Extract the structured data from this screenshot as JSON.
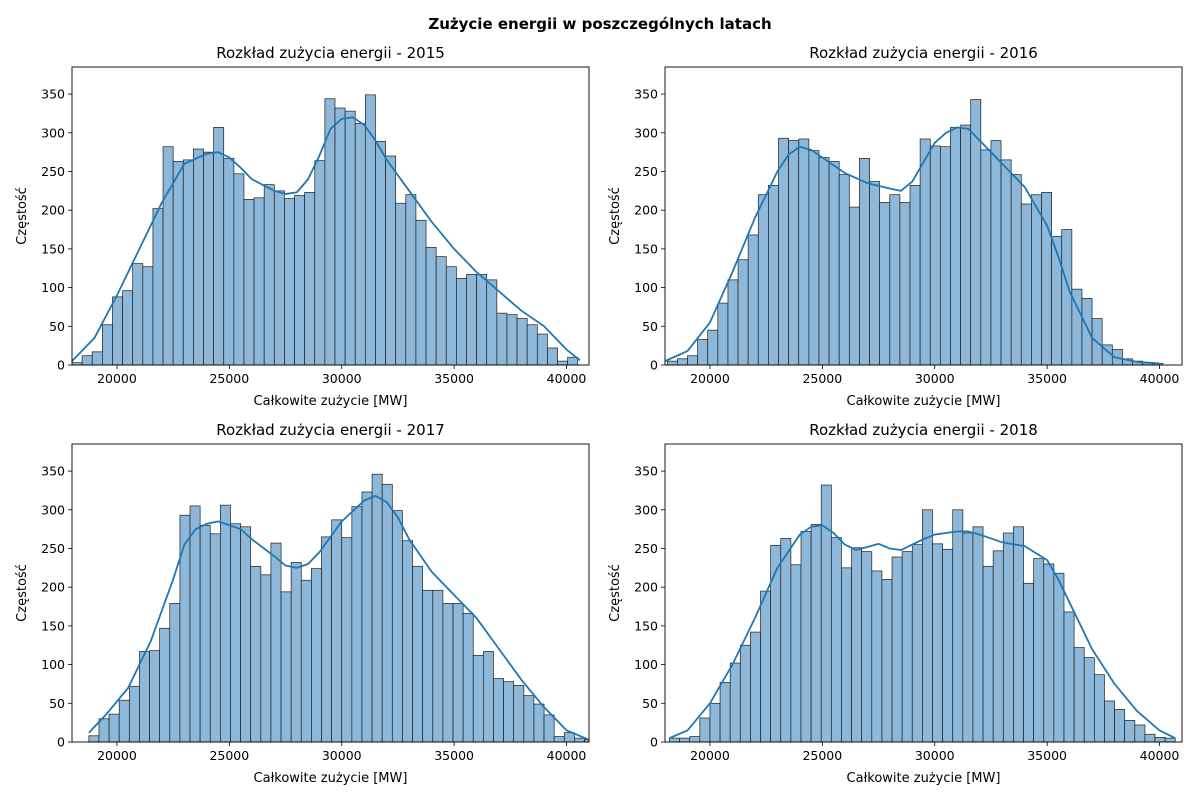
{
  "figure": {
    "suptitle": "Zużycie energii w poszczególnych latach"
  },
  "colors": {
    "bar_fill": "#8db8d9",
    "bar_edge": "#1f1f1f",
    "kde_line": "#1f77b4",
    "axes": "#000000"
  },
  "chart_data": [
    {
      "type": "bar",
      "title": "Rozkład zużycia energii - 2015",
      "xlabel": "Całkowite zużycie [MW]",
      "ylabel": "Częstość",
      "xlim": [
        18000,
        41000
      ],
      "ylim": [
        0,
        385
      ],
      "xticks": [
        "20000",
        "25000",
        "30000",
        "35000",
        "40000"
      ],
      "yticks": [
        "0",
        "50",
        "100",
        "150",
        "200",
        "250",
        "300",
        "350"
      ],
      "bin_start": 18000,
      "bin_width": 450,
      "values": [
        3,
        12,
        17,
        52,
        88,
        96,
        131,
        127,
        202,
        282,
        263,
        265,
        279,
        275,
        307,
        267,
        247,
        214,
        216,
        233,
        225,
        215,
        219,
        223,
        264,
        344,
        332,
        328,
        312,
        349,
        289,
        270,
        209,
        220,
        187,
        152,
        140,
        127,
        112,
        117,
        117,
        110,
        67,
        65,
        60,
        52,
        40,
        22,
        5,
        10
      ],
      "kde_x": [
        18000,
        19000,
        20000,
        21000,
        22000,
        23000,
        24000,
        24500,
        25000,
        25500,
        26000,
        27000,
        27500,
        28000,
        28500,
        29000,
        29500,
        30000,
        30500,
        31000,
        31500,
        32000,
        33000,
        34000,
        35000,
        36000,
        37000,
        38000,
        39000,
        40000,
        40600
      ],
      "kde_y": [
        5,
        35,
        90,
        150,
        210,
        260,
        273,
        275,
        268,
        255,
        240,
        225,
        221,
        223,
        240,
        270,
        305,
        318,
        320,
        310,
        290,
        265,
        225,
        185,
        150,
        120,
        95,
        70,
        50,
        20,
        6
      ],
      "grid": false,
      "legend": "none"
    },
    {
      "type": "bar",
      "title": "Rozkład zużycia energii - 2016",
      "xlabel": "Całkowite zużycie [MW]",
      "ylabel": "Częstość",
      "xlim": [
        18000,
        41000
      ],
      "ylim": [
        0,
        385
      ],
      "xticks": [
        "20000",
        "25000",
        "30000",
        "35000",
        "40000"
      ],
      "yticks": [
        "0",
        "50",
        "100",
        "150",
        "200",
        "250",
        "300",
        "350"
      ],
      "bin_start": 18100,
      "bin_width": 450,
      "values": [
        5,
        8,
        12,
        33,
        45,
        80,
        110,
        136,
        168,
        220,
        232,
        293,
        290,
        292,
        277,
        268,
        263,
        246,
        204,
        267,
        237,
        210,
        220,
        210,
        232,
        292,
        283,
        282,
        307,
        310,
        343,
        278,
        290,
        265,
        246,
        208,
        220,
        223,
        166,
        175,
        98,
        86,
        60,
        26,
        20,
        8,
        5,
        3,
        2
      ],
      "kde_x": [
        18000,
        19000,
        20000,
        21000,
        22000,
        23000,
        23500,
        24000,
        24500,
        25000,
        26000,
        27000,
        28000,
        28500,
        29000,
        29500,
        30000,
        30500,
        31000,
        31500,
        32000,
        33000,
        34000,
        35000,
        35500,
        36000,
        37000,
        38000,
        39000,
        40000
      ],
      "kde_y": [
        5,
        18,
        55,
        120,
        190,
        250,
        272,
        282,
        278,
        268,
        248,
        235,
        228,
        225,
        237,
        262,
        287,
        300,
        307,
        305,
        290,
        260,
        230,
        180,
        140,
        95,
        35,
        10,
        4,
        2
      ],
      "grid": false,
      "legend": "none"
    },
    {
      "type": "bar",
      "title": "Rozkład zużycia energii - 2017",
      "xlabel": "Całkowite zużycie [MW]",
      "ylabel": "Częstość",
      "xlim": [
        18000,
        41000
      ],
      "ylim": [
        0,
        385
      ],
      "xticks": [
        "20000",
        "25000",
        "30000",
        "35000",
        "40000"
      ],
      "yticks": [
        "0",
        "50",
        "100",
        "150",
        "200",
        "250",
        "300",
        "350"
      ],
      "bin_start": 18750,
      "bin_width": 450,
      "values": [
        8,
        30,
        36,
        54,
        72,
        117,
        118,
        147,
        179,
        293,
        305,
        280,
        269,
        306,
        282,
        278,
        227,
        216,
        257,
        194,
        232,
        209,
        224,
        265,
        287,
        264,
        304,
        323,
        346,
        333,
        299,
        260,
        227,
        196,
        196,
        179,
        179,
        166,
        112,
        117,
        82,
        78,
        73,
        60,
        49,
        35,
        7,
        12,
        5,
        3
      ],
      "kde_x": [
        18750,
        19500,
        20500,
        21500,
        22500,
        23000,
        23500,
        24000,
        24500,
        25000,
        25500,
        26000,
        27000,
        27500,
        28000,
        28500,
        29000,
        30000,
        31000,
        31500,
        32000,
        32500,
        33000,
        34000,
        35000,
        36000,
        37000,
        38000,
        39000,
        40000,
        41000
      ],
      "kde_y": [
        12,
        35,
        70,
        130,
        210,
        255,
        275,
        282,
        285,
        280,
        275,
        262,
        240,
        228,
        225,
        230,
        245,
        285,
        312,
        318,
        310,
        290,
        262,
        220,
        190,
        160,
        120,
        80,
        45,
        15,
        3
      ],
      "grid": false,
      "legend": "none"
    },
    {
      "type": "bar",
      "title": "Rozkład zużycia energii - 2018",
      "xlabel": "Całkowite zużycie [MW]",
      "ylabel": "Częstość",
      "xlim": [
        18000,
        41000
      ],
      "ylim": [
        0,
        385
      ],
      "xticks": [
        "20000",
        "25000",
        "30000",
        "35000",
        "40000"
      ],
      "yticks": [
        "0",
        "50",
        "100",
        "150",
        "200",
        "250",
        "300",
        "350"
      ],
      "bin_start": 18200,
      "bin_width": 450,
      "values": [
        5,
        5,
        7,
        31,
        50,
        77,
        102,
        125,
        142,
        195,
        254,
        263,
        229,
        272,
        281,
        332,
        264,
        225,
        251,
        246,
        221,
        210,
        239,
        246,
        255,
        300,
        256,
        249,
        300,
        270,
        278,
        227,
        247,
        270,
        278,
        205,
        237,
        230,
        218,
        168,
        122,
        109,
        87,
        53,
        42,
        28,
        22,
        10,
        6,
        5
      ],
      "kde_x": [
        18200,
        19000,
        20000,
        21000,
        22000,
        23000,
        24000,
        24500,
        25000,
        25500,
        26000,
        26500,
        27000,
        27500,
        28000,
        28500,
        29000,
        29500,
        30000,
        30500,
        31000,
        31500,
        32000,
        33000,
        34000,
        35000,
        35500,
        36000,
        37000,
        38000,
        39000,
        40000,
        40700
      ],
      "kde_y": [
        5,
        15,
        50,
        100,
        160,
        225,
        268,
        278,
        280,
        270,
        255,
        248,
        252,
        256,
        250,
        248,
        255,
        262,
        268,
        270,
        272,
        272,
        268,
        258,
        253,
        235,
        210,
        180,
        120,
        75,
        40,
        15,
        5
      ],
      "grid": false,
      "legend": "none"
    }
  ]
}
